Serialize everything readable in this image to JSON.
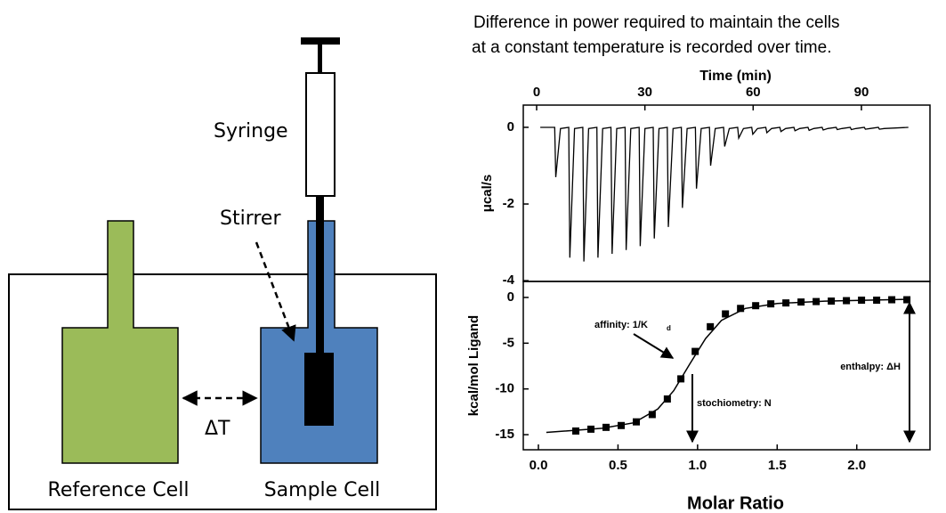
{
  "caption": [
    "Difference in power required to maintain the cells",
    "at a constant temperature is recorded over time."
  ],
  "diagram": {
    "syringe": "Syringe",
    "stirrer": "Stirrer",
    "delta_t": "ΔT",
    "reference_cell": "Reference Cell",
    "sample_cell": "Sample Cell"
  },
  "chart_data": [
    {
      "type": "line",
      "x_label": "Time (min)",
      "y_label": "μcal/s",
      "color": "#000000",
      "xlim": [
        -3.7,
        109
      ],
      "xticks": [
        0,
        30,
        60,
        90
      ],
      "ylim": [
        -4.02,
        0.58
      ],
      "yticks": [
        0,
        -2,
        -4
      ],
      "x": [
        1,
        5,
        5.3,
        6.6,
        8.9,
        9.2,
        10.5,
        12.8,
        13.1,
        14.4,
        16.7,
        17,
        18.3,
        20.6,
        20.9,
        22.2,
        24.5,
        24.8,
        26.1,
        28.4,
        28.7,
        30,
        32.3,
        32.6,
        33.9,
        36.2,
        36.5,
        37.8,
        40.1,
        40.4,
        41.7,
        44,
        44.3,
        45.6,
        47.9,
        48.2,
        49.5,
        51.8,
        52.1,
        53.4,
        55.7,
        56,
        57.3,
        59.6,
        59.9,
        61.2,
        63.5,
        63.8,
        65.1,
        67.4,
        67.7,
        69,
        71.3,
        71.6,
        72.9,
        75.2,
        75.5,
        76.8,
        79.1,
        79.4,
        80.7,
        83,
        83.3,
        84.6,
        86.9,
        87.2,
        88.5,
        90.8,
        91.1,
        92.4,
        94.7,
        95,
        96.3,
        103
      ],
      "values": [
        0,
        0,
        -1.3,
        -0.03,
        0,
        -3.4,
        -0.03,
        0,
        -3.5,
        -0.03,
        0,
        -3.4,
        -0.03,
        0,
        -3.3,
        -0.03,
        0,
        -3.2,
        -0.03,
        0,
        -3.1,
        -0.03,
        0,
        -2.9,
        -0.03,
        0,
        -2.6,
        -0.03,
        0,
        -2.1,
        -0.03,
        0,
        -1.6,
        -0.03,
        0,
        -1.0,
        -0.03,
        0,
        -0.5,
        -0.03,
        0,
        -0.28,
        -0.03,
        0,
        -0.18,
        -0.03,
        0,
        -0.14,
        -0.03,
        0,
        -0.11,
        -0.03,
        0,
        -0.09,
        -0.03,
        0,
        -0.08,
        -0.03,
        0,
        -0.07,
        -0.03,
        0,
        -0.06,
        -0.03,
        0,
        -0.06,
        -0.03,
        0,
        -0.05,
        -0.03,
        0,
        -0.05,
        -0.03,
        0
      ]
    },
    {
      "type": "scatter",
      "x_label": "Molar Ratio",
      "y_label": "kcal/mol Ligand",
      "color": "#000000",
      "xlim": [
        -0.095,
        2.46
      ],
      "xticks": [
        {
          "value": 0,
          "label": "0.0"
        },
        {
          "value": 0.5,
          "label": "0.5"
        },
        {
          "value": 1,
          "label": "1.0"
        },
        {
          "value": 1.5,
          "label": "1.5"
        },
        {
          "value": 2,
          "label": "2.0"
        }
      ],
      "ylim": [
        -16.65,
        1.75
      ],
      "yticks": [
        0,
        -5,
        -10,
        -15
      ],
      "x": [
        0.235,
        0.33,
        0.425,
        0.52,
        0.615,
        0.715,
        0.81,
        0.895,
        0.985,
        1.08,
        1.175,
        1.27,
        1.365,
        1.46,
        1.555,
        1.65,
        1.745,
        1.84,
        1.935,
        2.03,
        2.125,
        2.22,
        2.315
      ],
      "values": [
        -14.6,
        -14.4,
        -14.2,
        -14.0,
        -13.6,
        -12.8,
        -11.1,
        -8.9,
        -5.9,
        -3.2,
        -1.8,
        -1.2,
        -0.9,
        -0.7,
        -0.6,
        -0.5,
        -0.45,
        -0.4,
        -0.35,
        -0.3,
        -0.3,
        -0.25,
        -0.25
      ],
      "fit": {
        "x": [
          0.05,
          0.4,
          0.6,
          0.75,
          0.85,
          0.95,
          1.05,
          1.15,
          1.3,
          1.5,
          1.8,
          2.32
        ],
        "values": [
          -14.75,
          -14.3,
          -13.7,
          -12.2,
          -10.2,
          -7.3,
          -4.5,
          -2.5,
          -1.2,
          -0.65,
          -0.4,
          -0.2
        ]
      },
      "annotations": {
        "affinity": "affinity: 1/K",
        "affinity_subscript": "d",
        "stoichiometry": "stochiometry: N",
        "enthalpy": "enthalpy: ΔH"
      }
    }
  ]
}
